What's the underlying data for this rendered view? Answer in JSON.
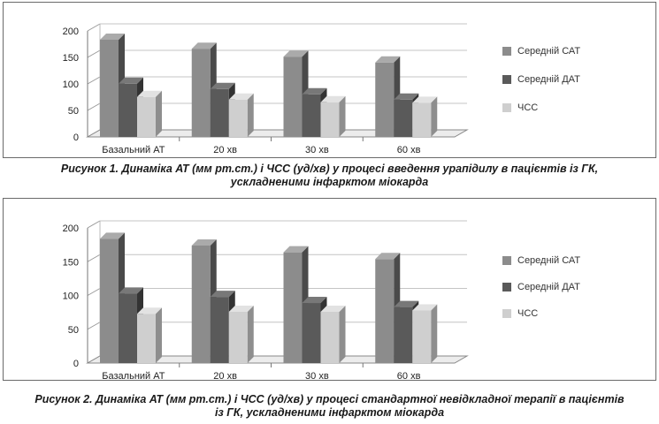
{
  "chart_data": [
    {
      "type": "bar",
      "categories": [
        "Базальний АТ",
        "20 хв",
        "30 хв",
        "60 хв"
      ],
      "series": [
        {
          "name": "Середній САТ",
          "values": [
            195,
            178,
            163,
            152
          ]
        },
        {
          "name": "Середній ДАТ",
          "values": [
            112,
            102,
            92,
            82
          ]
        },
        {
          "name": "ЧСС",
          "values": [
            87,
            82,
            77,
            76
          ]
        }
      ],
      "yticks": [
        "0",
        "50",
        "100",
        "150",
        "200"
      ],
      "ylim": [
        0,
        200
      ],
      "caption_lines": [
        "Рисунок 1. Динаміка АТ (мм рт.ст.) і ЧСС (уд/хв) у процесі введення урапідилу в пацієнтів із ГК,",
        "ускладненими інфарктом міокарда"
      ],
      "legend_position": "right",
      "colors": [
        "#8c8c8c",
        "#5a5a5a",
        "#cfcfcf"
      ]
    },
    {
      "type": "bar",
      "categories": [
        "Базальний АТ",
        "20 хв",
        "30 хв",
        "60 хв"
      ],
      "series": [
        {
          "name": "Середній САТ",
          "values": [
            193,
            183,
            173,
            163
          ]
        },
        {
          "name": "Середній ДАТ",
          "values": [
            112,
            107,
            98,
            92
          ]
        },
        {
          "name": "ЧСС",
          "values": [
            82,
            85,
            85,
            87
          ]
        }
      ],
      "yticks": [
        "0",
        "50",
        "100",
        "150",
        "200"
      ],
      "ylim": [
        0,
        200
      ],
      "caption_lines": [
        "Рисунок 2. Динаміка АТ (мм рт.ст.) і ЧСС (уд/хв) у процесі стандартної невідкладної терапії в пацієнтів",
        "із ГК, ускладненими інфарктом міокарда"
      ],
      "legend_position": "right",
      "colors": [
        "#8c8c8c",
        "#5a5a5a",
        "#cfcfcf"
      ]
    }
  ]
}
